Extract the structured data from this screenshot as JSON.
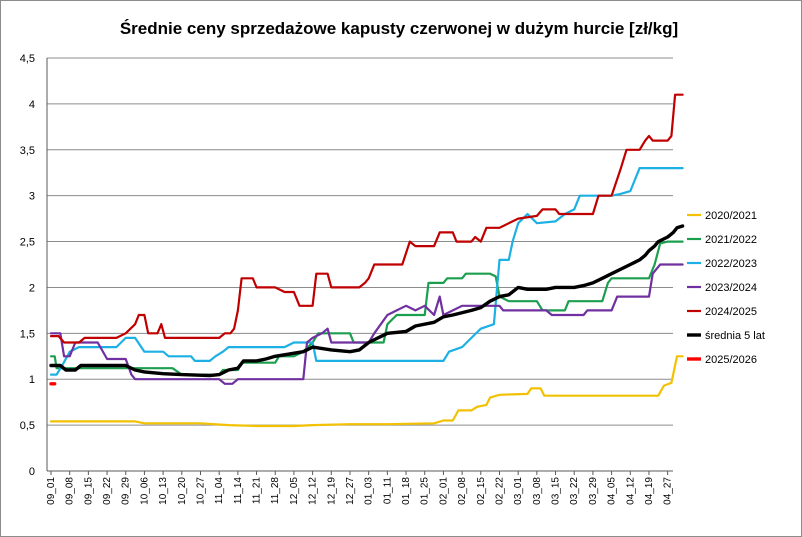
{
  "chart_data": {
    "type": "line",
    "title": "Średnie ceny sprzedażowe kapusty czerwonej w dużym hurcie [zł/kg]",
    "xlabel": "",
    "ylabel": "",
    "ylim": [
      0,
      4.5
    ],
    "yticks": [
      "0",
      "0,5",
      "1",
      "1,5",
      "2",
      "2,5",
      "3",
      "3,5",
      "4",
      "4,5"
    ],
    "ytick_values": [
      0,
      0.5,
      1,
      1.5,
      2,
      2.5,
      3,
      3.5,
      4,
      4.5
    ],
    "grid": "horizontal",
    "legend_position": "right",
    "x_categories": [
      "09_01",
      "09_08",
      "09_15",
      "09_22",
      "09_29",
      "10_06",
      "10_13",
      "10_20",
      "10_27",
      "11_04",
      "11_14",
      "11_21",
      "11_28",
      "12_05",
      "12_12",
      "12_19",
      "12_27",
      "01_03",
      "01_11",
      "01_18",
      "01_25",
      "02_01",
      "02_08",
      "02_15",
      "02_22",
      "03_01",
      "03_08",
      "03_15",
      "03_22",
      "03_29",
      "04_05",
      "04_12",
      "04_19",
      "04_27"
    ],
    "series": [
      {
        "name": "2020/2021",
        "color": "#f2c100",
        "width": 2.2,
        "points": [
          [
            0,
            0.54
          ],
          [
            4.5,
            0.54
          ],
          [
            5.0,
            0.52
          ],
          [
            7.0,
            0.52
          ],
          [
            8.0,
            0.52
          ],
          [
            9.5,
            0.5
          ],
          [
            11.0,
            0.49
          ],
          [
            13.0,
            0.49
          ],
          [
            14.0,
            0.5
          ],
          [
            16.0,
            0.51
          ],
          [
            18.0,
            0.51
          ],
          [
            20.5,
            0.52
          ],
          [
            21.0,
            0.55
          ],
          [
            21.5,
            0.55
          ],
          [
            21.8,
            0.66
          ],
          [
            22.5,
            0.66
          ],
          [
            22.8,
            0.7
          ],
          [
            23.3,
            0.72
          ],
          [
            23.5,
            0.8
          ],
          [
            24.0,
            0.83
          ],
          [
            25.5,
            0.84
          ],
          [
            25.7,
            0.9
          ],
          [
            26.2,
            0.9
          ],
          [
            26.4,
            0.82
          ],
          [
            32.5,
            0.82
          ],
          [
            32.8,
            0.93
          ],
          [
            33.2,
            0.96
          ],
          [
            33.5,
            1.25
          ],
          [
            33.8,
            1.25
          ]
        ]
      },
      {
        "name": "2021/2022",
        "color": "#1b9f4f",
        "width": 2.2,
        "points": [
          [
            0,
            1.25
          ],
          [
            0.2,
            1.25
          ],
          [
            0.3,
            1.12
          ],
          [
            6.5,
            1.12
          ],
          [
            7.0,
            1.05
          ],
          [
            9.0,
            1.05
          ],
          [
            9.2,
            1.1
          ],
          [
            10.0,
            1.1
          ],
          [
            10.2,
            1.18
          ],
          [
            12.0,
            1.18
          ],
          [
            12.2,
            1.25
          ],
          [
            13.0,
            1.25
          ],
          [
            13.5,
            1.3
          ],
          [
            14.0,
            1.4
          ],
          [
            14.3,
            1.5
          ],
          [
            16.0,
            1.5
          ],
          [
            16.2,
            1.4
          ],
          [
            17.8,
            1.4
          ],
          [
            18.0,
            1.6
          ],
          [
            18.5,
            1.7
          ],
          [
            20.0,
            1.7
          ],
          [
            20.2,
            2.05
          ],
          [
            21.0,
            2.05
          ],
          [
            21.2,
            2.1
          ],
          [
            22.0,
            2.1
          ],
          [
            22.2,
            2.15
          ],
          [
            23.5,
            2.15
          ],
          [
            23.8,
            2.12
          ],
          [
            24.0,
            1.9
          ],
          [
            24.5,
            1.85
          ],
          [
            26.0,
            1.85
          ],
          [
            26.3,
            1.75
          ],
          [
            27.5,
            1.75
          ],
          [
            27.7,
            1.85
          ],
          [
            29.5,
            1.85
          ],
          [
            29.8,
            2.05
          ],
          [
            30.0,
            2.1
          ],
          [
            32.0,
            2.1
          ],
          [
            32.3,
            2.25
          ],
          [
            32.6,
            2.48
          ],
          [
            33.0,
            2.5
          ],
          [
            33.8,
            2.5
          ]
        ]
      },
      {
        "name": "2022/2023",
        "color": "#1db0e4",
        "width": 2.2,
        "points": [
          [
            0,
            1.05
          ],
          [
            0.3,
            1.05
          ],
          [
            0.6,
            1.15
          ],
          [
            1.0,
            1.3
          ],
          [
            1.5,
            1.35
          ],
          [
            3.5,
            1.35
          ],
          [
            4.0,
            1.45
          ],
          [
            4.5,
            1.45
          ],
          [
            5.0,
            1.3
          ],
          [
            6.0,
            1.3
          ],
          [
            6.3,
            1.25
          ],
          [
            7.5,
            1.25
          ],
          [
            7.7,
            1.2
          ],
          [
            8.5,
            1.2
          ],
          [
            8.8,
            1.25
          ],
          [
            9.2,
            1.3
          ],
          [
            9.5,
            1.35
          ],
          [
            12.5,
            1.35
          ],
          [
            13.0,
            1.4
          ],
          [
            14.0,
            1.4
          ],
          [
            14.2,
            1.2
          ],
          [
            21.0,
            1.2
          ],
          [
            21.3,
            1.3
          ],
          [
            22.0,
            1.35
          ],
          [
            22.5,
            1.45
          ],
          [
            23.0,
            1.55
          ],
          [
            23.7,
            1.6
          ],
          [
            24.0,
            2.3
          ],
          [
            24.5,
            2.3
          ],
          [
            24.7,
            2.5
          ],
          [
            25.0,
            2.7
          ],
          [
            25.5,
            2.8
          ],
          [
            26.0,
            2.7
          ],
          [
            27.0,
            2.72
          ],
          [
            27.5,
            2.8
          ],
          [
            28.0,
            2.85
          ],
          [
            28.3,
            3.0
          ],
          [
            30.0,
            3.0
          ],
          [
            30.5,
            3.02
          ],
          [
            31.0,
            3.05
          ],
          [
            31.5,
            3.3
          ],
          [
            33.8,
            3.3
          ]
        ]
      },
      {
        "name": "2023/2024",
        "color": "#7030a0",
        "width": 2.2,
        "points": [
          [
            0,
            1.5
          ],
          [
            0.5,
            1.5
          ],
          [
            0.7,
            1.25
          ],
          [
            1.0,
            1.25
          ],
          [
            1.3,
            1.4
          ],
          [
            2.5,
            1.4
          ],
          [
            3.0,
            1.22
          ],
          [
            4.0,
            1.22
          ],
          [
            4.3,
            1.05
          ],
          [
            4.5,
            1.0
          ],
          [
            9.0,
            1.0
          ],
          [
            9.3,
            0.95
          ],
          [
            9.7,
            0.95
          ],
          [
            10.0,
            1.0
          ],
          [
            13.5,
            1.0
          ],
          [
            13.7,
            1.4
          ],
          [
            14.0,
            1.45
          ],
          [
            14.5,
            1.5
          ],
          [
            14.8,
            1.55
          ],
          [
            15.0,
            1.4
          ],
          [
            16.0,
            1.4
          ],
          [
            17.0,
            1.4
          ],
          [
            17.3,
            1.5
          ],
          [
            18.0,
            1.7
          ],
          [
            18.5,
            1.75
          ],
          [
            19.0,
            1.8
          ],
          [
            19.5,
            1.75
          ],
          [
            20.0,
            1.8
          ],
          [
            20.5,
            1.7
          ],
          [
            20.8,
            1.9
          ],
          [
            21.0,
            1.7
          ],
          [
            22.0,
            1.8
          ],
          [
            24.0,
            1.8
          ],
          [
            24.2,
            1.75
          ],
          [
            26.5,
            1.75
          ],
          [
            26.8,
            1.7
          ],
          [
            28.5,
            1.7
          ],
          [
            28.7,
            1.75
          ],
          [
            30.0,
            1.75
          ],
          [
            30.3,
            1.9
          ],
          [
            32.0,
            1.9
          ],
          [
            32.2,
            2.15
          ],
          [
            32.6,
            2.25
          ],
          [
            33.8,
            2.25
          ]
        ]
      },
      {
        "name": "2024/2025",
        "color": "#c00000",
        "width": 2.2,
        "points": [
          [
            0,
            1.47
          ],
          [
            0.4,
            1.47
          ],
          [
            0.7,
            1.4
          ],
          [
            1.5,
            1.4
          ],
          [
            1.8,
            1.45
          ],
          [
            3.5,
            1.45
          ],
          [
            4.0,
            1.5
          ],
          [
            4.5,
            1.6
          ],
          [
            4.7,
            1.7
          ],
          [
            5.0,
            1.7
          ],
          [
            5.2,
            1.5
          ],
          [
            5.7,
            1.5
          ],
          [
            5.9,
            1.6
          ],
          [
            6.1,
            1.45
          ],
          [
            9.0,
            1.45
          ],
          [
            9.3,
            1.5
          ],
          [
            9.6,
            1.5
          ],
          [
            9.8,
            1.55
          ],
          [
            10.0,
            1.75
          ],
          [
            10.2,
            2.1
          ],
          [
            10.8,
            2.1
          ],
          [
            11.0,
            2.0
          ],
          [
            12.0,
            2.0
          ],
          [
            12.5,
            1.95
          ],
          [
            13.0,
            1.95
          ],
          [
            13.3,
            1.8
          ],
          [
            14.0,
            1.8
          ],
          [
            14.2,
            2.15
          ],
          [
            14.8,
            2.15
          ],
          [
            15.0,
            2.0
          ],
          [
            16.5,
            2.0
          ],
          [
            16.8,
            2.05
          ],
          [
            17.0,
            2.1
          ],
          [
            17.3,
            2.25
          ],
          [
            18.8,
            2.25
          ],
          [
            19.2,
            2.5
          ],
          [
            19.5,
            2.45
          ],
          [
            20.5,
            2.45
          ],
          [
            20.8,
            2.6
          ],
          [
            21.5,
            2.6
          ],
          [
            21.7,
            2.5
          ],
          [
            22.5,
            2.5
          ],
          [
            22.7,
            2.55
          ],
          [
            23.0,
            2.5
          ],
          [
            23.3,
            2.65
          ],
          [
            24.0,
            2.65
          ],
          [
            24.5,
            2.7
          ],
          [
            25.0,
            2.75
          ],
          [
            26.0,
            2.78
          ],
          [
            26.3,
            2.85
          ],
          [
            27.0,
            2.85
          ],
          [
            27.2,
            2.8
          ],
          [
            29.0,
            2.8
          ],
          [
            29.3,
            3.0
          ],
          [
            30.0,
            3.0
          ],
          [
            30.5,
            3.3
          ],
          [
            30.8,
            3.5
          ],
          [
            31.5,
            3.5
          ],
          [
            31.8,
            3.6
          ],
          [
            32.0,
            3.65
          ],
          [
            32.2,
            3.6
          ],
          [
            33.0,
            3.6
          ],
          [
            33.2,
            3.65
          ],
          [
            33.4,
            4.1
          ],
          [
            33.8,
            4.1
          ]
        ]
      },
      {
        "name": "średnia 5 lat",
        "color": "#000000",
        "width": 3.4,
        "points": [
          [
            0,
            1.15
          ],
          [
            0.5,
            1.15
          ],
          [
            0.8,
            1.1
          ],
          [
            1.3,
            1.1
          ],
          [
            1.6,
            1.15
          ],
          [
            4.0,
            1.15
          ],
          [
            4.5,
            1.1
          ],
          [
            5.0,
            1.08
          ],
          [
            6.0,
            1.06
          ],
          [
            7.0,
            1.05
          ],
          [
            8.5,
            1.04
          ],
          [
            9.0,
            1.05
          ],
          [
            9.5,
            1.1
          ],
          [
            10.0,
            1.12
          ],
          [
            10.3,
            1.2
          ],
          [
            11.0,
            1.2
          ],
          [
            11.5,
            1.22
          ],
          [
            12.0,
            1.25
          ],
          [
            13.5,
            1.3
          ],
          [
            14.0,
            1.35
          ],
          [
            15.0,
            1.32
          ],
          [
            16.0,
            1.3
          ],
          [
            16.5,
            1.32
          ],
          [
            17.0,
            1.4
          ],
          [
            17.5,
            1.45
          ],
          [
            18.0,
            1.5
          ],
          [
            19.0,
            1.52
          ],
          [
            19.5,
            1.58
          ],
          [
            20.5,
            1.62
          ],
          [
            21.0,
            1.68
          ],
          [
            21.5,
            1.7
          ],
          [
            22.5,
            1.75
          ],
          [
            23.0,
            1.78
          ],
          [
            23.5,
            1.85
          ],
          [
            24.0,
            1.9
          ],
          [
            24.5,
            1.92
          ],
          [
            25.0,
            2.0
          ],
          [
            25.5,
            1.98
          ],
          [
            26.5,
            1.98
          ],
          [
            27.0,
            2.0
          ],
          [
            28.0,
            2.0
          ],
          [
            28.5,
            2.02
          ],
          [
            29.0,
            2.05
          ],
          [
            29.5,
            2.1
          ],
          [
            30.0,
            2.15
          ],
          [
            30.5,
            2.2
          ],
          [
            31.0,
            2.25
          ],
          [
            31.5,
            2.3
          ],
          [
            31.8,
            2.35
          ],
          [
            32.0,
            2.4
          ],
          [
            32.3,
            2.45
          ],
          [
            32.5,
            2.5
          ],
          [
            33.0,
            2.55
          ],
          [
            33.3,
            2.6
          ],
          [
            33.5,
            2.65
          ],
          [
            33.8,
            2.67
          ]
        ]
      },
      {
        "name": "2025/2026",
        "color": "#ff0000",
        "width": 3.4,
        "points": [
          [
            0,
            0.95
          ],
          [
            0.2,
            0.95
          ]
        ]
      }
    ]
  }
}
